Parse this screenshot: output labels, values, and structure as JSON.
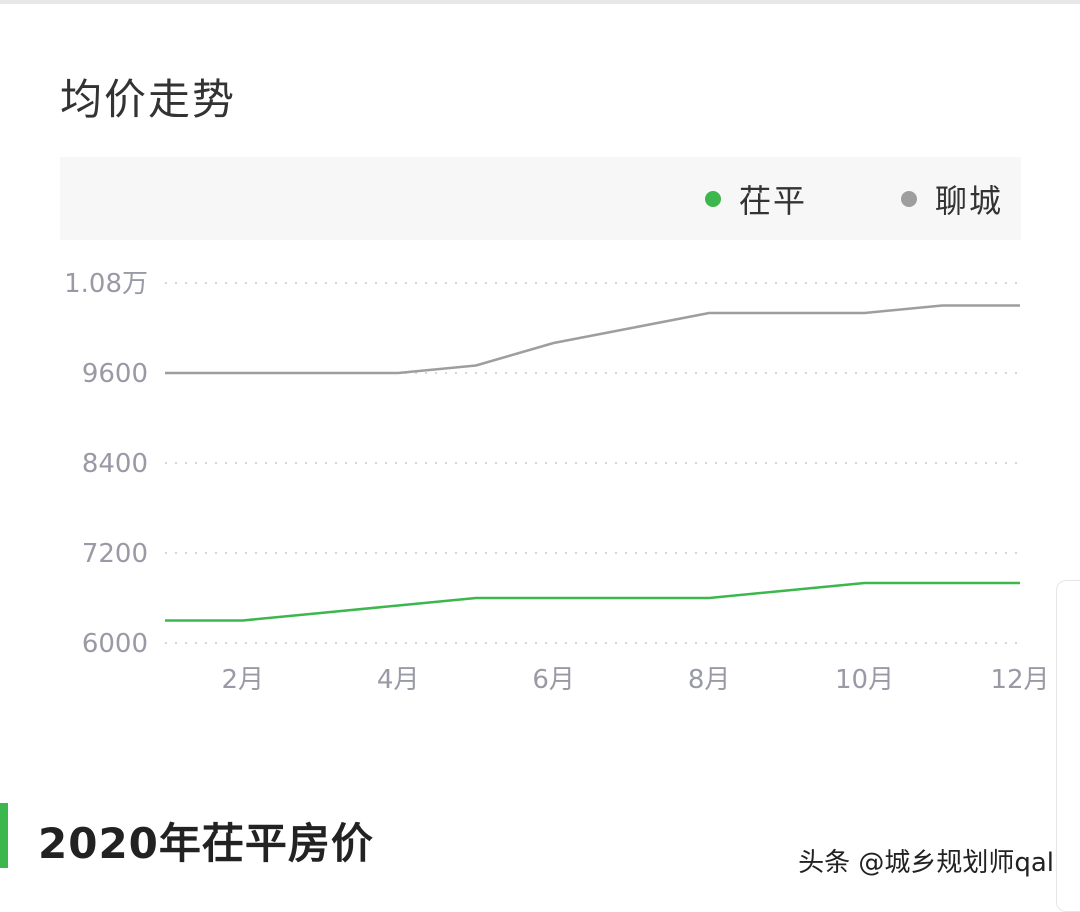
{
  "section_title": "均价走势",
  "report_title": "2020年茌平房价",
  "watermark": "头条 @城乡规划师qal",
  "chart_data": {
    "type": "line",
    "x": [
      "1月",
      "2月",
      "3月",
      "4月",
      "5月",
      "6月",
      "7月",
      "8月",
      "9月",
      "10月",
      "11月",
      "12月"
    ],
    "xticks": [
      "2月",
      "4月",
      "6月",
      "8月",
      "10月",
      "12月"
    ],
    "yticks": [
      {
        "value": 6000,
        "label": "6000"
      },
      {
        "value": 7200,
        "label": "7200"
      },
      {
        "value": 8400,
        "label": "8400"
      },
      {
        "value": 9600,
        "label": "9600"
      },
      {
        "value": 10800,
        "label": "1.08万"
      }
    ],
    "ylim": [
      6000,
      10800
    ],
    "grid": true,
    "legend_position": "top-right",
    "series": [
      {
        "name": "茌平",
        "color": "#3cb74e",
        "values": [
          6300,
          6300,
          6400,
          6500,
          6600,
          6600,
          6600,
          6600,
          6700,
          6800,
          6800,
          6800
        ]
      },
      {
        "name": "聊城",
        "color": "#9e9e9e",
        "values": [
          9600,
          9600,
          9600,
          9600,
          9700,
          10000,
          10200,
          10400,
          10400,
          10400,
          10500,
          10500
        ]
      }
    ]
  }
}
